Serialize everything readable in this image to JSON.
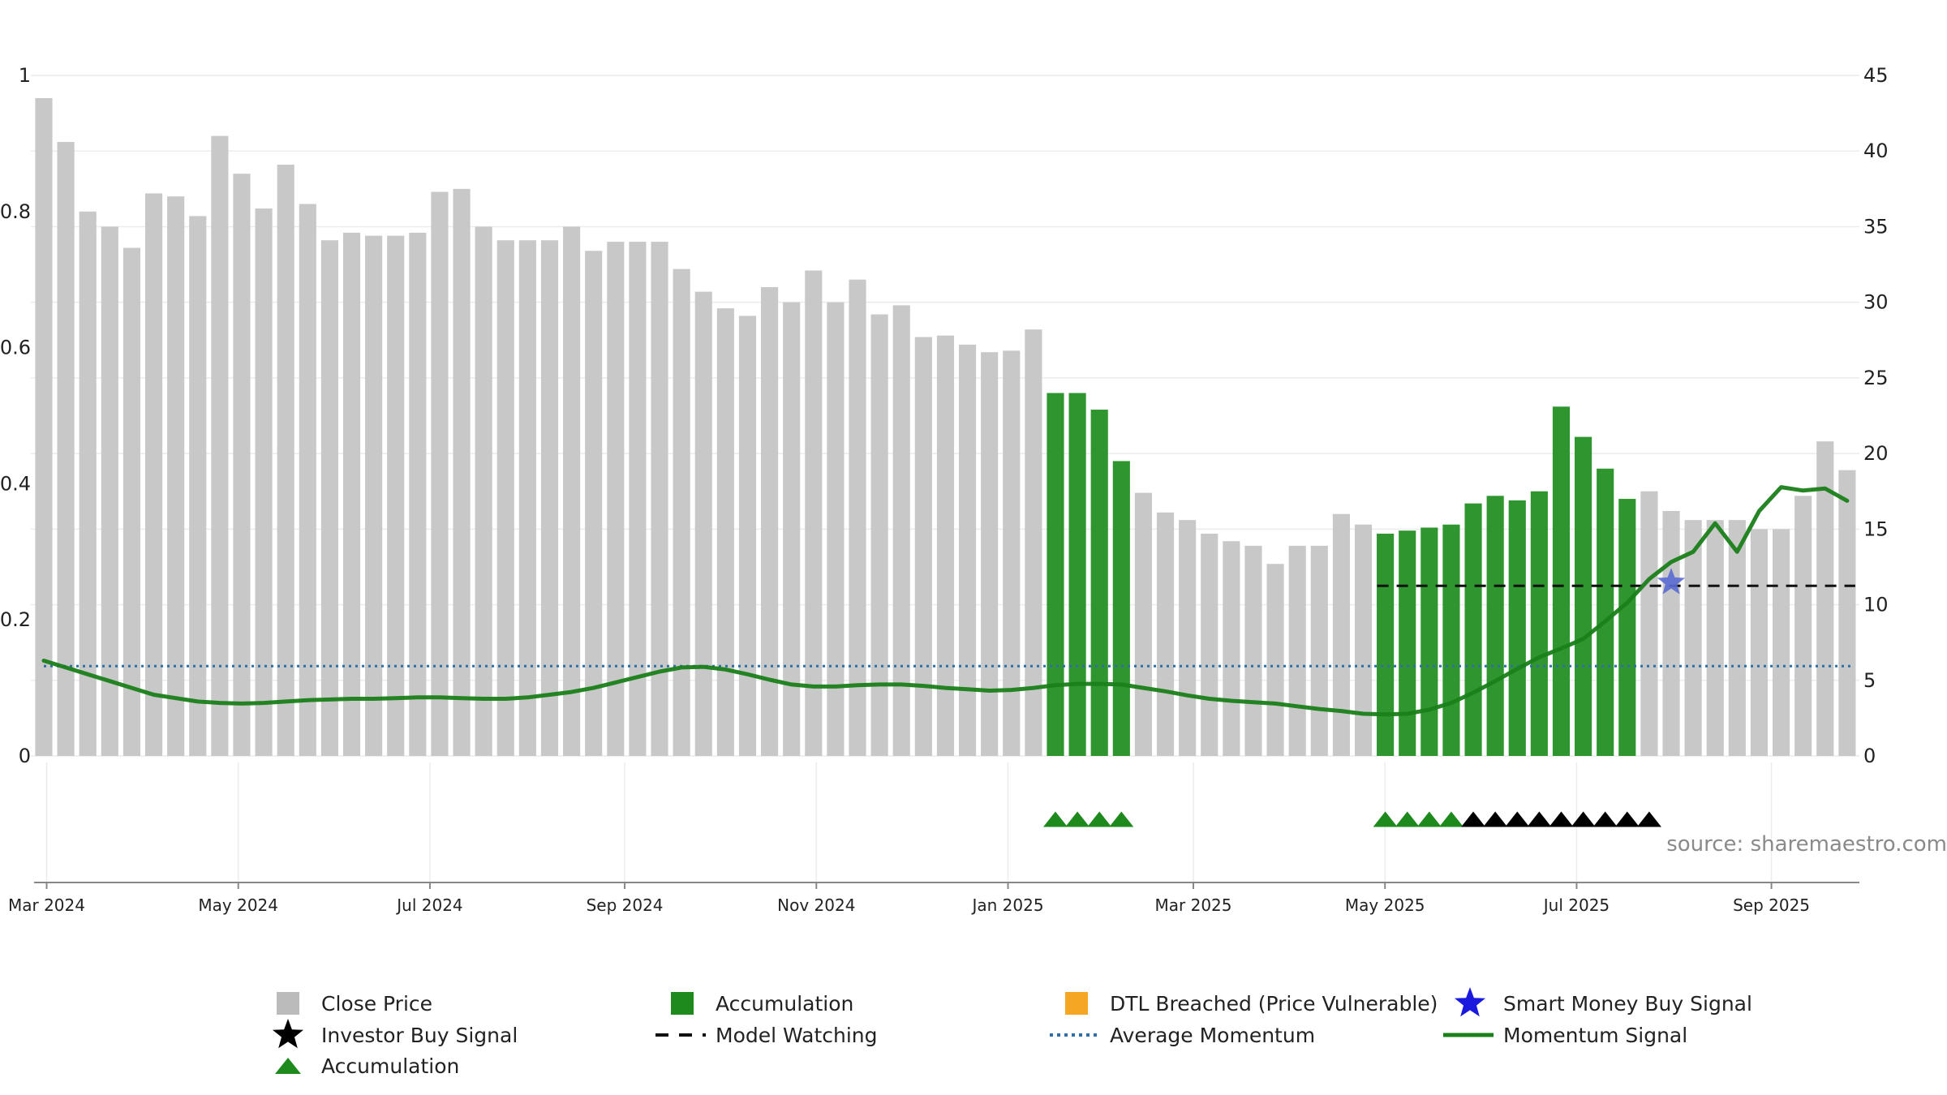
{
  "chart_data": {
    "type": "bar",
    "title": "",
    "source": "source: sharemaestro.com",
    "left_axis": {
      "min": 0,
      "max": 1,
      "ticks": [
        0,
        0.2,
        0.4,
        0.6,
        0.8,
        1
      ],
      "tick_labels": [
        "0",
        "0.2",
        "0.4",
        "0.6",
        "0.8",
        "1"
      ]
    },
    "right_axis": {
      "min": 0,
      "max": 45,
      "ticks": [
        0,
        5,
        10,
        15,
        20,
        25,
        30,
        35,
        40,
        45
      ],
      "tick_labels": [
        "0",
        "5",
        "10",
        "15",
        "20",
        "25",
        "30",
        "35",
        "40",
        "45"
      ]
    },
    "x_axis": {
      "start_date": "2024-02-26",
      "end_date": "2025-09-29",
      "ticks": [
        {
          "date": "2024-03-01",
          "label": "Mar 2024"
        },
        {
          "date": "2024-05-01",
          "label": "May 2024"
        },
        {
          "date": "2024-07-01",
          "label": "Jul 2024"
        },
        {
          "date": "2024-09-01",
          "label": "Sep 2024"
        },
        {
          "date": "2024-11-01",
          "label": "Nov 2024"
        },
        {
          "date": "2025-01-01",
          "label": "Jan 2025"
        },
        {
          "date": "2025-03-01",
          "label": "Mar 2025"
        },
        {
          "date": "2025-05-01",
          "label": "May 2025"
        },
        {
          "date": "2025-07-01",
          "label": "Jul 2025"
        },
        {
          "date": "2025-09-01",
          "label": "Sep 2025"
        }
      ]
    },
    "bars": {
      "first_date": "2024-02-26",
      "interval_days": 7,
      "values": [
        43.5,
        40.6,
        36.0,
        35.0,
        33.6,
        37.2,
        37.0,
        35.7,
        41.0,
        38.5,
        36.2,
        39.1,
        36.5,
        34.1,
        34.6,
        34.4,
        34.4,
        34.6,
        37.3,
        37.5,
        35.0,
        34.1,
        34.1,
        34.1,
        35.0,
        33.4,
        34.0,
        34.0,
        34.0,
        32.2,
        30.7,
        29.6,
        29.1,
        31.0,
        30.0,
        32.1,
        30.0,
        31.5,
        29.2,
        29.8,
        27.7,
        27.8,
        27.2,
        26.7,
        26.8,
        28.2,
        24.0,
        24.0,
        22.9,
        19.5,
        17.4,
        16.1,
        15.6,
        14.7,
        14.2,
        13.9,
        12.7,
        13.9,
        13.9,
        16.0,
        15.3,
        14.7,
        14.9,
        15.1,
        15.3,
        16.7,
        17.2,
        16.9,
        17.5,
        23.1,
        21.1,
        19.0,
        17.0,
        17.5,
        16.2,
        15.6,
        15.6,
        15.6,
        15.0,
        15.0,
        17.2,
        20.8,
        18.9
      ],
      "accumulation_indices": [
        46,
        47,
        48,
        49,
        61,
        62,
        63,
        64,
        65,
        66,
        67,
        68,
        69,
        70,
        71,
        72
      ],
      "close_color": "#c8c8c8",
      "accumulation_color": "#2f962f"
    },
    "momentum_signal": {
      "name": "Momentum Signal",
      "color": "#1a801a",
      "axis": "left",
      "values": [
        0.14,
        0.13,
        0.12,
        0.11,
        0.1,
        0.09,
        0.085,
        0.08,
        0.078,
        0.077,
        0.078,
        0.08,
        0.082,
        0.083,
        0.084,
        0.084,
        0.085,
        0.086,
        0.086,
        0.085,
        0.084,
        0.084,
        0.086,
        0.09,
        0.094,
        0.1,
        0.108,
        0.116,
        0.124,
        0.13,
        0.131,
        0.127,
        0.12,
        0.112,
        0.105,
        0.102,
        0.102,
        0.104,
        0.105,
        0.105,
        0.103,
        0.1,
        0.098,
        0.096,
        0.097,
        0.1,
        0.104,
        0.106,
        0.106,
        0.105,
        0.1,
        0.095,
        0.089,
        0.084,
        0.081,
        0.079,
        0.077,
        0.073,
        0.069,
        0.066,
        0.062,
        0.061,
        0.062,
        0.068,
        0.078,
        0.093,
        0.11,
        0.128,
        0.145,
        0.158,
        0.172,
        0.198,
        0.225,
        0.26,
        0.285,
        0.3,
        0.342,
        0.3,
        0.36,
        0.395,
        0.39,
        0.393,
        0.375
      ]
    },
    "average_momentum": {
      "name": "Average Momentum",
      "value": 0.132,
      "color": "#2f6fa7"
    },
    "model_watching": {
      "name": "Model Watching",
      "value": 0.25,
      "from_index": 61,
      "to_index": 82,
      "color": "#111111"
    },
    "smart_money_signal": {
      "name": "Smart Money Buy Signal",
      "index": 74,
      "value": 0.255,
      "color": "#5a6ad0"
    },
    "accumulation_markers": {
      "name": "Accumulation",
      "indices": [
        46,
        47,
        48,
        49,
        61,
        62,
        63,
        64
      ],
      "color": "#1e8a1e"
    },
    "investor_markers": {
      "name": "Investor Buy Signal",
      "indices": [
        65,
        66,
        67,
        68,
        69,
        70,
        71,
        72,
        73
      ],
      "color": "#000000"
    },
    "legend": [
      {
        "label": "Close Price",
        "kind": "square",
        "color": "#bbbbbb"
      },
      {
        "label": "Accumulation",
        "kind": "square",
        "color": "#1e8a1e"
      },
      {
        "label": "DTL Breached (Price Vulnerable)",
        "kind": "square",
        "color": "#f5a623"
      },
      {
        "label": "Smart Money Buy Signal",
        "kind": "star",
        "color": "#1a1adf"
      },
      {
        "label": "Investor Buy Signal",
        "kind": "star",
        "color": "#000000"
      },
      {
        "label": "Model Watching",
        "kind": "dash",
        "color": "#111111"
      },
      {
        "label": "Average Momentum",
        "kind": "dot",
        "color": "#2f6fa7"
      },
      {
        "label": "Momentum Signal",
        "kind": "line",
        "color": "#1a801a"
      },
      {
        "label": "Accumulation",
        "kind": "triangle",
        "color": "#1e8a1e"
      }
    ]
  }
}
